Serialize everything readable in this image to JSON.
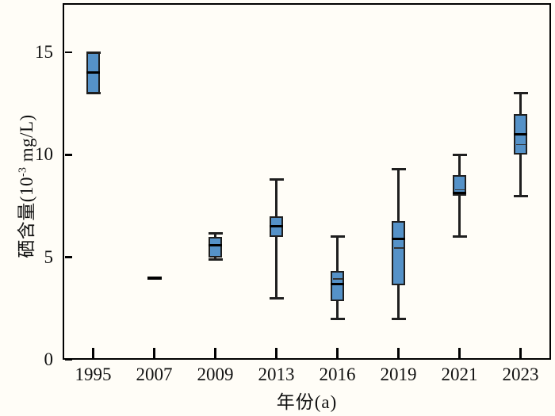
{
  "chart_data": {
    "type": "box",
    "title": "",
    "xlabel": "年份(a)",
    "ylabel": "硒含量(10⁻³ mg/L)",
    "ylabel_parts": {
      "prefix": "硒含量(10",
      "superscript": "-3",
      "suffix": " mg/L)"
    },
    "categories": [
      "1995",
      "2007",
      "2009",
      "2013",
      "2016",
      "2019",
      "2021",
      "2023"
    ],
    "yticks": [
      0,
      5,
      10,
      15
    ],
    "ylim": [
      0,
      17.4
    ],
    "grid": false,
    "legend": "none",
    "series": [
      {
        "category": "1995",
        "min": 13.0,
        "q1": 13.0,
        "median": 14.0,
        "q3": 15.0,
        "max": 15.0
      },
      {
        "category": "2007",
        "single_value": true,
        "value": 4.0
      },
      {
        "category": "2009",
        "min": 4.9,
        "q1": 5.0,
        "median": 5.6,
        "q3": 6.0,
        "max": 6.15
      },
      {
        "category": "2013",
        "min": 3.0,
        "q1": 6.0,
        "median": 6.5,
        "q3": 7.0,
        "max": 8.8
      },
      {
        "category": "2016",
        "min": 2.0,
        "q1": 2.85,
        "median": 3.7,
        "mean": 3.95,
        "q3": 4.35,
        "max": 6.0
      },
      {
        "category": "2019",
        "min": 2.0,
        "q1": 3.65,
        "median": 5.9,
        "mean": 5.45,
        "q3": 6.75,
        "max": 9.3
      },
      {
        "category": "2021",
        "min": 6.0,
        "q1": 8.0,
        "median": 8.15,
        "mean": 8.3,
        "q3": 9.0,
        "max": 10.0
      },
      {
        "category": "2023",
        "min": 8.0,
        "q1": 10.0,
        "median": 11.0,
        "mean": 10.5,
        "q3": 12.0,
        "max": 13.0
      }
    ],
    "colors": {
      "box_fill": "#5592c8",
      "box_edge": "#1f1f1f",
      "axis_line": "#000000",
      "background": "#fffdf7"
    }
  }
}
